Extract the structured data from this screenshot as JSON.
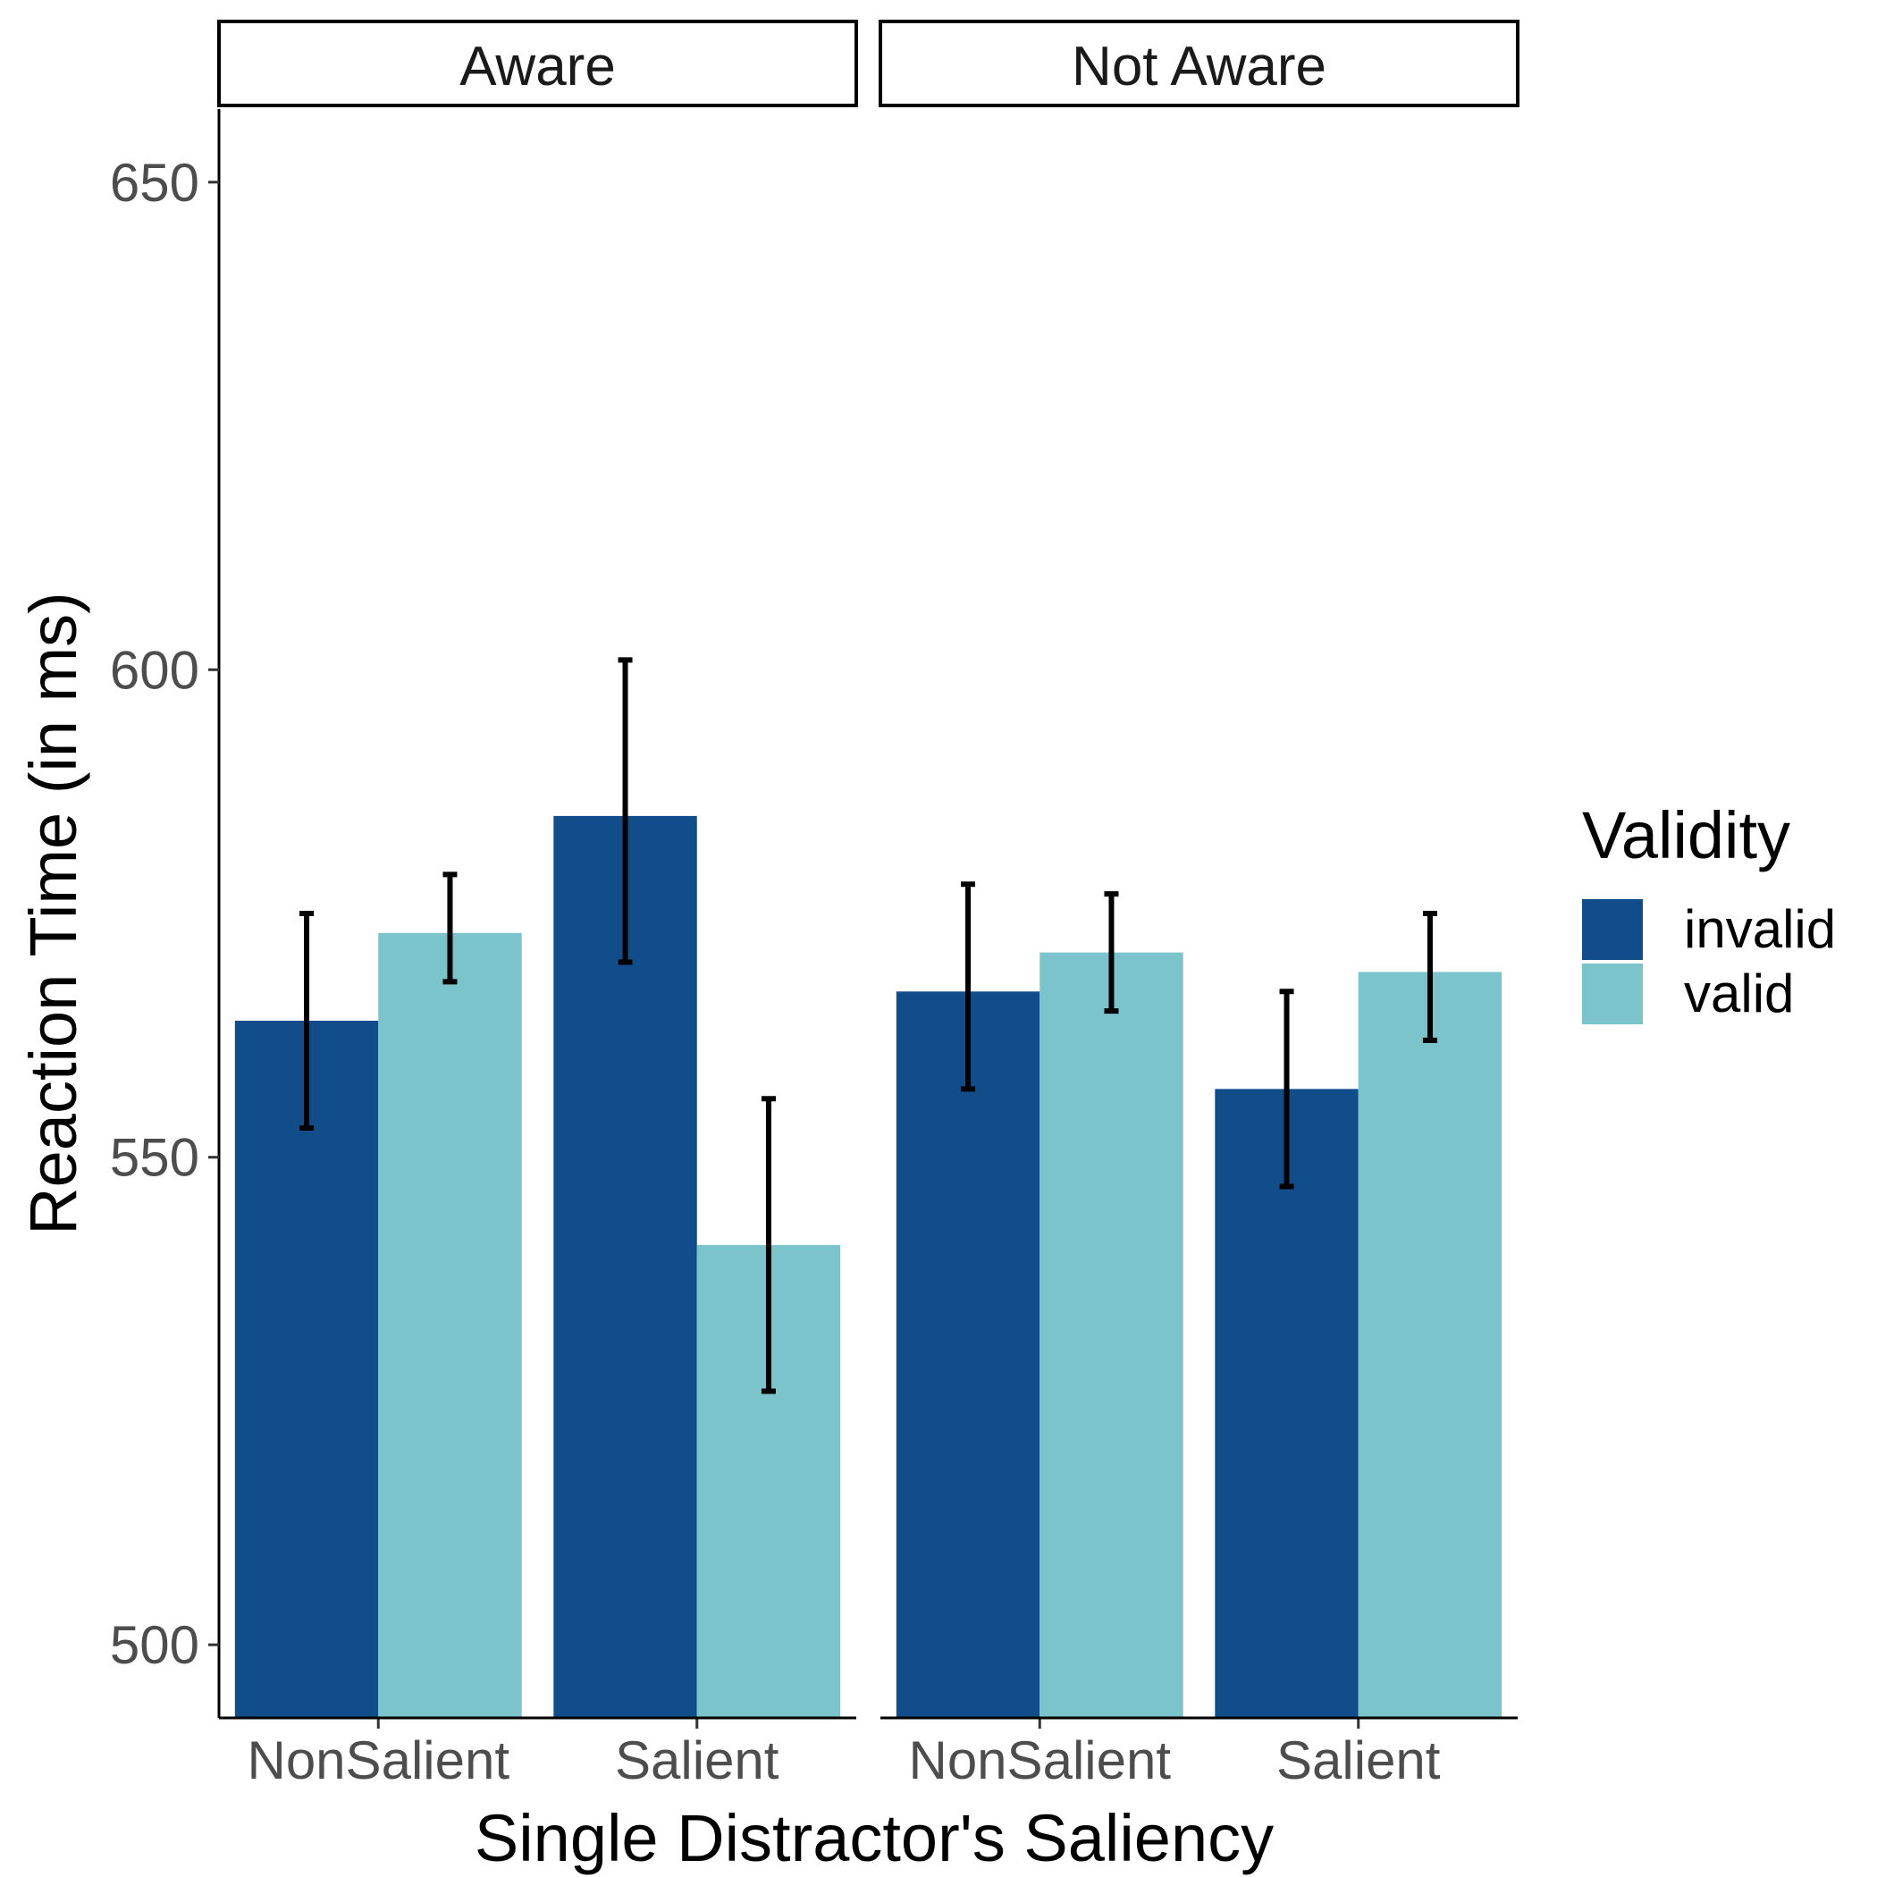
{
  "chart_data": {
    "type": "bar",
    "xlabel": "Single Distractor's Saliency",
    "ylabel": "Reaction Time (in ms)",
    "ylim": [
      492.5,
      657.5
    ],
    "yticks": [
      500,
      550,
      600,
      650
    ],
    "categories": [
      "NonSalient",
      "Salient"
    ],
    "legend": {
      "title": "Validity",
      "position": "right"
    },
    "grid": false,
    "colors": {
      "invalid": "#114d8a",
      "valid": "#7cc4cc"
    },
    "panels": [
      {
        "label": "Aware",
        "series": [
          {
            "name": "invalid",
            "values": [
              564,
              585
            ],
            "error_low": [
              553,
              570
            ],
            "error_high": [
              575,
              601
            ]
          },
          {
            "name": "valid",
            "values": [
              573,
              541
            ],
            "error_low": [
              568,
              526
            ],
            "error_high": [
              579,
              556
            ]
          }
        ]
      },
      {
        "label": "Not Aware",
        "series": [
          {
            "name": "invalid",
            "values": [
              567,
              557
            ],
            "error_low": [
              557,
              547
            ],
            "error_high": [
              578,
              567
            ]
          },
          {
            "name": "valid",
            "values": [
              571,
              569
            ],
            "error_low": [
              565,
              562
            ],
            "error_high": [
              577,
              575
            ]
          }
        ]
      }
    ]
  }
}
